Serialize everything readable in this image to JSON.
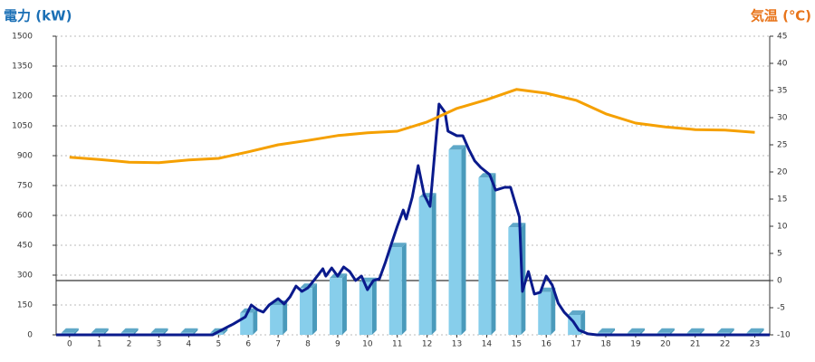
{
  "chart_data": {
    "type": "combo",
    "y_label": "電力 (kW)",
    "y_label_color": "#1a6fb5",
    "y2_label": "気温 (℃)",
    "y2_label_color": "#e8741a",
    "xlim": [
      -0.45,
      23.5
    ],
    "xticks": [
      0,
      1,
      2,
      3,
      4,
      5,
      6,
      7,
      8,
      9,
      10,
      11,
      12,
      13,
      14,
      15,
      16,
      17,
      18,
      19,
      20,
      21,
      22,
      23
    ],
    "ylim": [
      0,
      1500
    ],
    "yticks": [
      0,
      150,
      300,
      450,
      600,
      750,
      900,
      1050,
      1200,
      1350,
      1500
    ],
    "y2lim": [
      -10,
      45
    ],
    "y2ticks": [
      -10,
      -5,
      0,
      5,
      10,
      15,
      20,
      25,
      30,
      35,
      40,
      45
    ],
    "grid": true,
    "y2_zero_line": true,
    "series": [
      {
        "type": "bar",
        "color": "#87ceeb",
        "x": [
          0,
          1,
          2,
          3,
          4,
          5,
          6,
          7,
          8,
          9,
          10,
          11,
          12,
          13,
          14,
          15,
          16,
          17,
          18,
          19,
          20,
          21,
          22,
          23
        ],
        "values": [
          10,
          10,
          10,
          10,
          10,
          10,
          110,
          150,
          235,
          285,
          265,
          440,
          690,
          930,
          790,
          540,
          215,
          100,
          10,
          10,
          10,
          10,
          10,
          10
        ]
      },
      {
        "type": "line",
        "color": "#0a1a8c",
        "x": [
          -0.45,
          4.8,
          5.5,
          5.9,
          6.1,
          6.3,
          6.5,
          6.7,
          7.0,
          7.2,
          7.4,
          7.6,
          7.8,
          8.0,
          8.2,
          8.5,
          8.6,
          8.8,
          9.0,
          9.2,
          9.4,
          9.6,
          9.8,
          10.0,
          10.2,
          10.4,
          10.6,
          10.8,
          11.0,
          11.2,
          11.3,
          11.5,
          11.7,
          11.9,
          12.1,
          12.4,
          12.6,
          12.7,
          13.0,
          13.2,
          13.4,
          13.6,
          13.8,
          14.1,
          14.3,
          14.6,
          14.8,
          15.1,
          15.2,
          15.4,
          15.6,
          15.8,
          16.0,
          16.2,
          16.4,
          16.6,
          16.9,
          17.1,
          17.4,
          17.7,
          23.5
        ],
        "values": [
          0,
          0,
          55,
          90,
          150,
          127,
          114,
          150,
          182,
          155,
          191,
          245,
          218,
          236,
          273,
          332,
          295,
          336,
          295,
          341,
          318,
          273,
          295,
          227,
          273,
          282,
          364,
          455,
          545,
          627,
          582,
          691,
          850,
          705,
          645,
          1159,
          1118,
          1023,
          1000,
          1000,
          932,
          873,
          841,
          805,
          727,
          741,
          741,
          591,
          218,
          318,
          205,
          214,
          295,
          250,
          159,
          114,
          68,
          23,
          5,
          0,
          0
        ]
      },
      {
        "type": "line",
        "axis": "y2",
        "color": "#f5a000",
        "x": [
          0,
          1,
          2,
          3,
          4,
          5,
          6,
          7,
          8,
          9,
          10,
          11,
          12,
          13,
          14,
          15,
          16,
          17,
          18,
          19,
          20,
          21,
          22,
          23
        ],
        "values": [
          22.7,
          22.3,
          21.8,
          21.7,
          22.2,
          22.5,
          23.7,
          25,
          25.8,
          26.7,
          27.2,
          27.5,
          29.2,
          31.7,
          33.3,
          35.2,
          34.5,
          33.2,
          30.7,
          29,
          28.3,
          27.8,
          27.7,
          27.3
        ]
      }
    ]
  }
}
